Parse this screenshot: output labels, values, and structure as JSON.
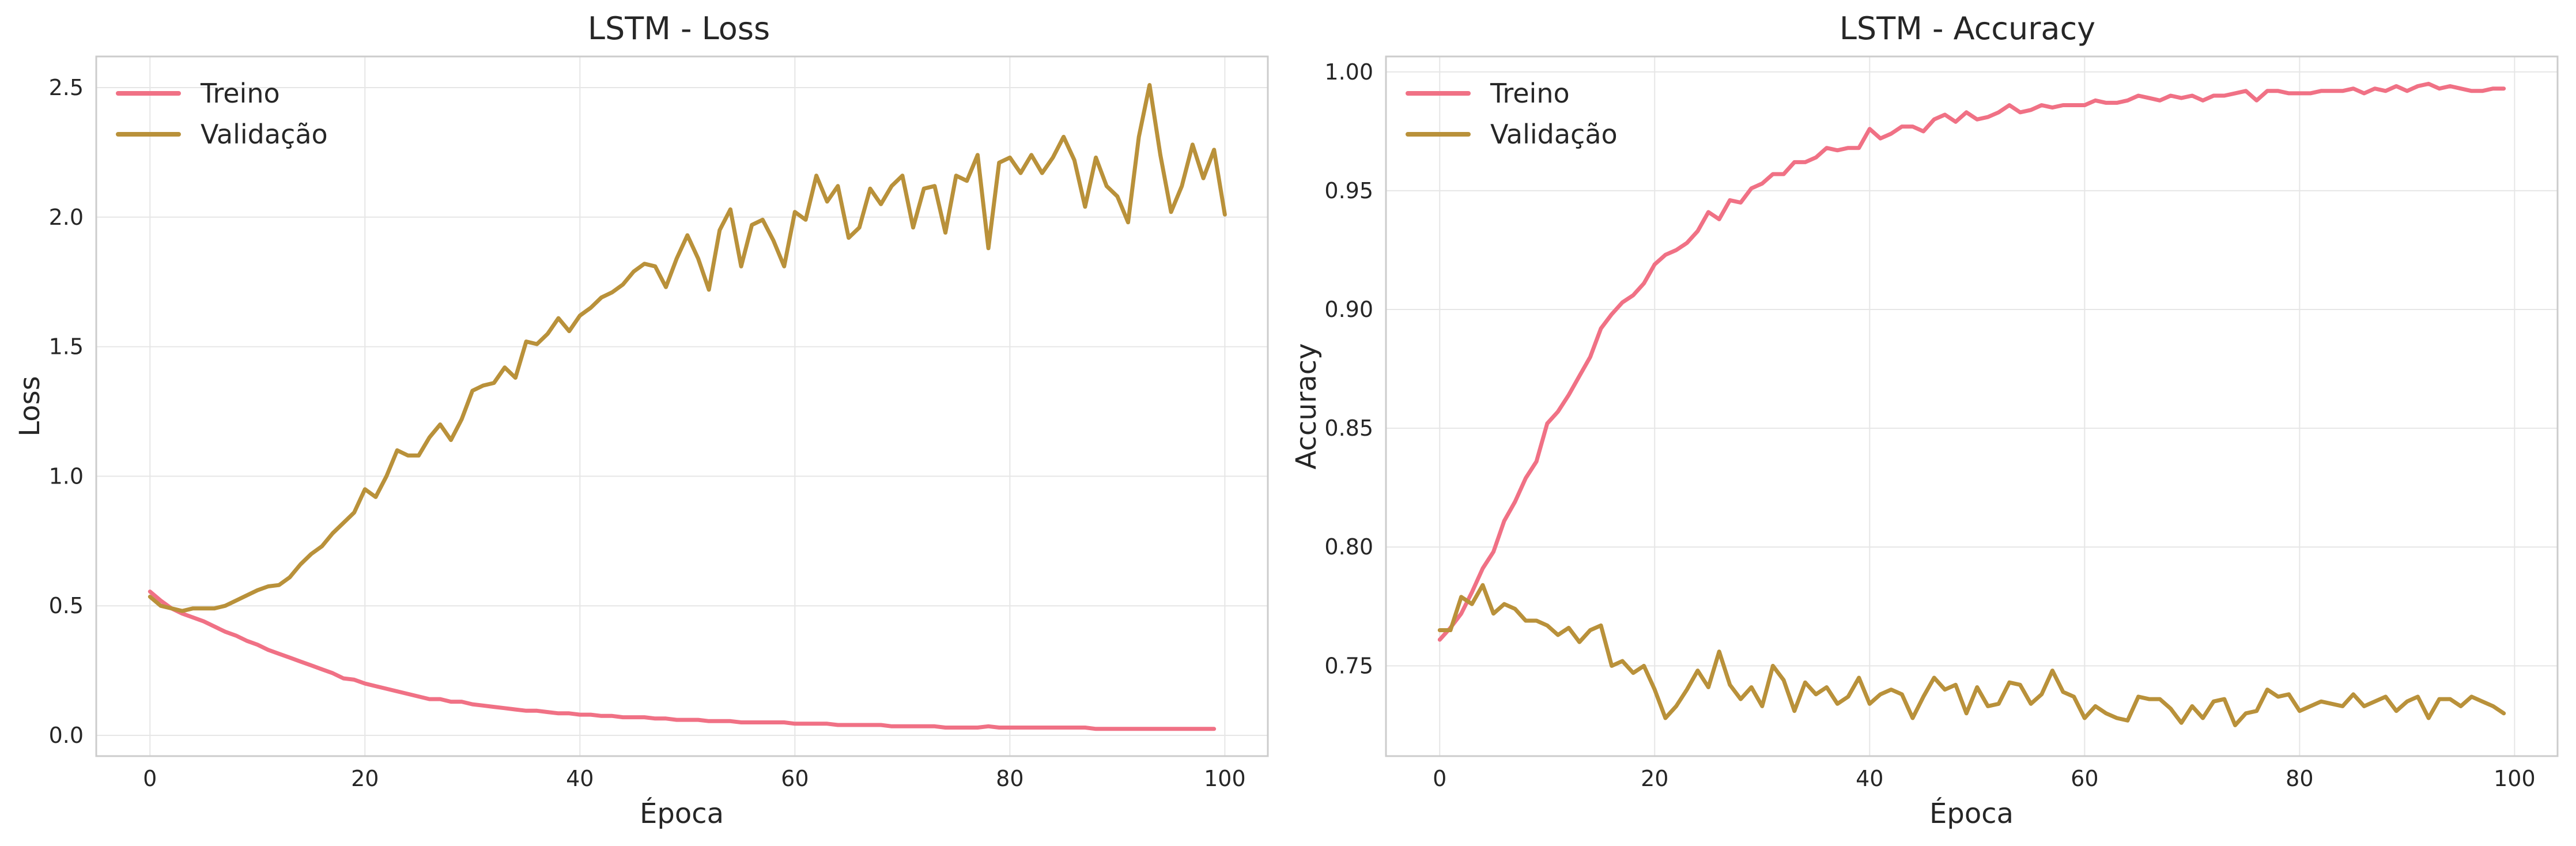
{
  "colors": {
    "treino": "#f07185",
    "validacao": "#b9913a"
  },
  "chart_data": [
    {
      "type": "line",
      "title": "LSTM - Loss",
      "xlabel": "Época",
      "ylabel": "Loss",
      "xlim": [
        -5,
        104
      ],
      "ylim": [
        -0.08,
        2.62
      ],
      "xticks": [
        0,
        20,
        40,
        60,
        80,
        100
      ],
      "yticks": [
        0.0,
        0.5,
        1.0,
        1.5,
        2.0,
        2.5
      ],
      "ytick_labels": [
        "0.0",
        "0.5",
        "1.0",
        "1.5",
        "2.0",
        "2.5"
      ],
      "grid": true,
      "legend": "top-left",
      "series": [
        {
          "name": "Treino",
          "color": "#f07185",
          "x_start": 0,
          "values": [
            0.555,
            0.52,
            0.49,
            0.47,
            0.455,
            0.44,
            0.42,
            0.4,
            0.385,
            0.365,
            0.35,
            0.33,
            0.315,
            0.3,
            0.285,
            0.27,
            0.255,
            0.24,
            0.22,
            0.215,
            0.2,
            0.19,
            0.18,
            0.17,
            0.16,
            0.15,
            0.14,
            0.14,
            0.13,
            0.13,
            0.12,
            0.115,
            0.11,
            0.105,
            0.1,
            0.095,
            0.095,
            0.09,
            0.085,
            0.085,
            0.08,
            0.08,
            0.075,
            0.075,
            0.07,
            0.07,
            0.07,
            0.065,
            0.065,
            0.06,
            0.06,
            0.06,
            0.055,
            0.055,
            0.055,
            0.05,
            0.05,
            0.05,
            0.05,
            0.05,
            0.045,
            0.045,
            0.045,
            0.045,
            0.04,
            0.04,
            0.04,
            0.04,
            0.04,
            0.035,
            0.035,
            0.035,
            0.035,
            0.035,
            0.03,
            0.03,
            0.03,
            0.03,
            0.035,
            0.03,
            0.03,
            0.03,
            0.03,
            0.03,
            0.03,
            0.03,
            0.03,
            0.03,
            0.025,
            0.025,
            0.025,
            0.025,
            0.025,
            0.025,
            0.025,
            0.025,
            0.025,
            0.025,
            0.025,
            0.025
          ]
        },
        {
          "name": "Validação",
          "color": "#b9913a",
          "x_start": 0,
          "values": [
            0.535,
            0.5,
            0.49,
            0.48,
            0.49,
            0.49,
            0.49,
            0.5,
            0.52,
            0.54,
            0.56,
            0.575,
            0.58,
            0.61,
            0.66,
            0.7,
            0.73,
            0.78,
            0.82,
            0.86,
            0.95,
            0.92,
            1.0,
            1.1,
            1.08,
            1.08,
            1.15,
            1.2,
            1.14,
            1.22,
            1.33,
            1.35,
            1.36,
            1.42,
            1.38,
            1.52,
            1.51,
            1.55,
            1.61,
            1.56,
            1.62,
            1.65,
            1.69,
            1.71,
            1.74,
            1.79,
            1.82,
            1.81,
            1.73,
            1.84,
            1.93,
            1.84,
            1.72,
            1.95,
            2.03,
            1.81,
            1.97,
            1.99,
            1.91,
            1.81,
            2.02,
            1.99,
            2.16,
            2.06,
            2.12,
            1.92,
            1.96,
            2.11,
            2.05,
            2.12,
            2.16,
            1.96,
            2.11,
            2.12,
            1.94,
            2.16,
            2.14,
            2.24,
            1.88,
            2.21,
            2.23,
            2.17,
            2.24,
            2.17,
            2.23,
            2.31,
            2.22,
            2.04,
            2.23,
            2.12,
            2.08,
            1.98,
            2.31,
            2.51,
            2.24,
            2.02,
            2.12,
            2.28,
            2.15,
            2.26,
            2.01
          ]
        }
      ]
    },
    {
      "type": "line",
      "title": "LSTM - Accuracy",
      "xlabel": "Época",
      "ylabel": "Accuracy",
      "xlim": [
        -5,
        104
      ],
      "ylim": [
        0.712,
        1.0065
      ],
      "xticks": [
        0,
        20,
        40,
        60,
        80,
        100
      ],
      "yticks": [
        0.75,
        0.8,
        0.85,
        0.9,
        0.95,
        1.0
      ],
      "ytick_labels": [
        "0.75",
        "0.80",
        "0.85",
        "0.90",
        "0.95",
        "1.00"
      ],
      "grid": true,
      "legend": "top-left",
      "series": [
        {
          "name": "Treino",
          "color": "#f07185",
          "x_start": 0,
          "values": [
            0.761,
            0.766,
            0.772,
            0.781,
            0.791,
            0.798,
            0.811,
            0.819,
            0.829,
            0.836,
            0.852,
            0.857,
            0.864,
            0.872,
            0.88,
            0.892,
            0.898,
            0.903,
            0.906,
            0.911,
            0.919,
            0.923,
            0.925,
            0.928,
            0.933,
            0.941,
            0.938,
            0.946,
            0.945,
            0.951,
            0.953,
            0.957,
            0.957,
            0.962,
            0.962,
            0.964,
            0.968,
            0.967,
            0.968,
            0.968,
            0.976,
            0.972,
            0.974,
            0.977,
            0.977,
            0.975,
            0.98,
            0.982,
            0.979,
            0.983,
            0.98,
            0.981,
            0.983,
            0.986,
            0.983,
            0.984,
            0.986,
            0.985,
            0.986,
            0.986,
            0.986,
            0.988,
            0.987,
            0.987,
            0.988,
            0.99,
            0.989,
            0.988,
            0.99,
            0.989,
            0.99,
            0.988,
            0.99,
            0.99,
            0.991,
            0.992,
            0.988,
            0.992,
            0.992,
            0.991,
            0.991,
            0.991,
            0.992,
            0.992,
            0.992,
            0.993,
            0.991,
            0.993,
            0.992,
            0.994,
            0.992,
            0.994,
            0.995,
            0.993,
            0.994,
            0.993,
            0.992,
            0.992,
            0.993,
            0.993
          ]
        },
        {
          "name": "Validação",
          "color": "#b9913a",
          "x_start": 0,
          "values": [
            0.765,
            0.765,
            0.779,
            0.776,
            0.784,
            0.772,
            0.776,
            0.774,
            0.769,
            0.769,
            0.767,
            0.763,
            0.766,
            0.76,
            0.765,
            0.767,
            0.75,
            0.752,
            0.747,
            0.75,
            0.74,
            0.728,
            0.733,
            0.74,
            0.748,
            0.741,
            0.756,
            0.742,
            0.736,
            0.741,
            0.733,
            0.75,
            0.744,
            0.731,
            0.743,
            0.738,
            0.741,
            0.734,
            0.737,
            0.745,
            0.734,
            0.738,
            0.74,
            0.738,
            0.728,
            0.737,
            0.745,
            0.74,
            0.742,
            0.73,
            0.741,
            0.733,
            0.734,
            0.743,
            0.742,
            0.734,
            0.738,
            0.748,
            0.739,
            0.737,
            0.728,
            0.733,
            0.73,
            0.728,
            0.727,
            0.737,
            0.736,
            0.736,
            0.732,
            0.726,
            0.733,
            0.728,
            0.735,
            0.736,
            0.725,
            0.73,
            0.731,
            0.74,
            0.737,
            0.738,
            0.731,
            0.733,
            0.735,
            0.734,
            0.733,
            0.738,
            0.733,
            0.735,
            0.737,
            0.731,
            0.735,
            0.737,
            0.728,
            0.736,
            0.736,
            0.733,
            0.737,
            0.735,
            0.733,
            0.73
          ]
        }
      ]
    }
  ]
}
